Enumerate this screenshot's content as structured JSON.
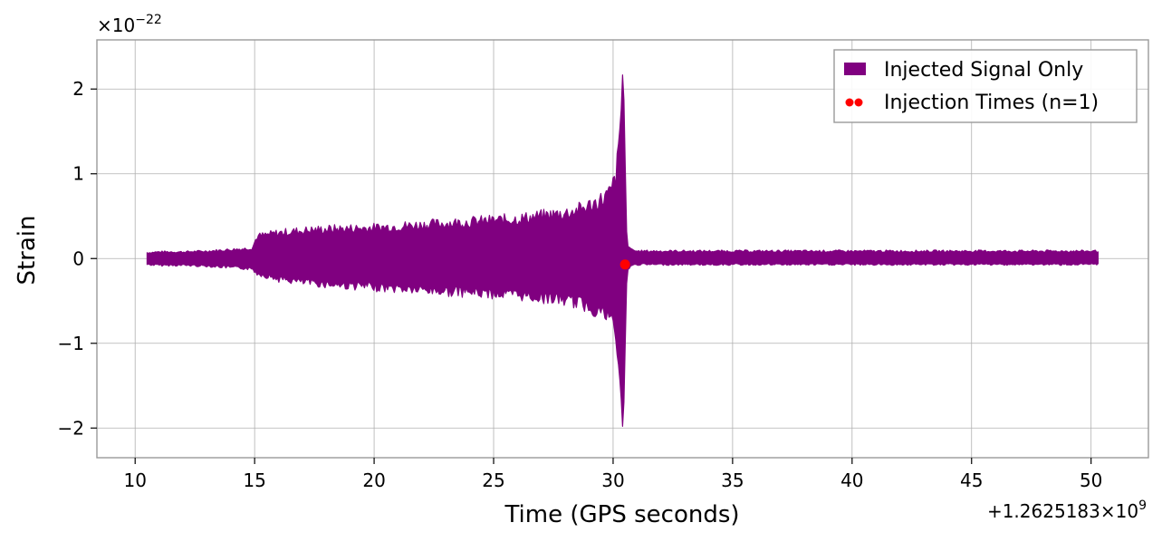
{
  "chart_data": {
    "type": "line",
    "xlabel": "Time (GPS seconds)",
    "ylabel": "Strain",
    "x_offset_label": "+1.2625183×10",
    "x_offset_exp": "9",
    "y_multiplier_label": "×10",
    "y_multiplier_exp": "−22",
    "xlim": [
      8.4,
      52.4
    ],
    "ylim": [
      -2.35,
      2.58
    ],
    "x_ticks": [
      10,
      15,
      20,
      25,
      30,
      35,
      40,
      45,
      50
    ],
    "x_tick_labels": [
      "10",
      "15",
      "20",
      "25",
      "30",
      "35",
      "40",
      "45",
      "50"
    ],
    "y_ticks": [
      -2,
      -1,
      0,
      1,
      2
    ],
    "y_tick_labels": [
      "−2",
      "−1",
      "0",
      "1",
      "2"
    ],
    "grid": true,
    "legend_position": "top-right",
    "series": [
      {
        "name": "Injected Signal Only",
        "color": "#800080",
        "kind": "envelope",
        "x": [
          10.5,
          11,
          12,
          13,
          14,
          14.9,
          15.1,
          16,
          17,
          18,
          19,
          20,
          21,
          22,
          23,
          24,
          25,
          26,
          27,
          28,
          28.5,
          29,
          29.5,
          29.9,
          30.1,
          30.25,
          30.35,
          30.42,
          30.5,
          30.58,
          30.75,
          31,
          33,
          36,
          40,
          44,
          48,
          50.3
        ],
        "upper": [
          0.08,
          0.09,
          0.09,
          0.1,
          0.12,
          0.14,
          0.3,
          0.35,
          0.38,
          0.4,
          0.41,
          0.42,
          0.44,
          0.46,
          0.48,
          0.5,
          0.52,
          0.54,
          0.58,
          0.62,
          0.66,
          0.72,
          0.8,
          0.9,
          1.1,
          1.4,
          1.8,
          2.35,
          1.2,
          0.15,
          0.12,
          0.1,
          0.1,
          0.1,
          0.1,
          0.1,
          0.1,
          0.1
        ],
        "lower": [
          -0.08,
          -0.09,
          -0.09,
          -0.1,
          -0.12,
          -0.14,
          -0.2,
          -0.28,
          -0.32,
          -0.35,
          -0.37,
          -0.39,
          -0.41,
          -0.43,
          -0.45,
          -0.46,
          -0.48,
          -0.5,
          -0.53,
          -0.57,
          -0.6,
          -0.66,
          -0.73,
          -0.82,
          -1.0,
          -1.3,
          -1.7,
          -2.12,
          -1.1,
          -0.14,
          -0.1,
          -0.08,
          -0.08,
          -0.08,
          -0.08,
          -0.08,
          -0.08,
          -0.08
        ]
      },
      {
        "name": "Injection Times (n=1)",
        "color": "#ff0000",
        "kind": "scatter",
        "x": [
          30.5
        ],
        "y": [
          -0.07
        ]
      }
    ]
  }
}
